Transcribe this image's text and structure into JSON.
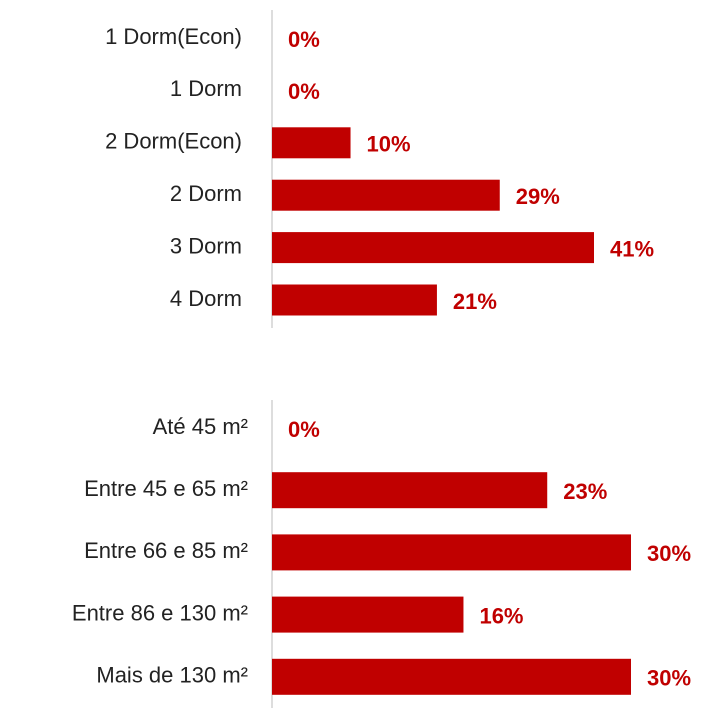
{
  "chart_data": [
    {
      "type": "hbar",
      "categories": [
        "1 Dorm(Econ)",
        "1 Dorm",
        "2 Dorm(Econ)",
        "2 Dorm",
        "3 Dorm",
        "4 Dorm"
      ],
      "values": [
        0,
        0,
        10,
        29,
        41,
        21
      ],
      "value_labels": [
        "0%",
        "0%",
        "10%",
        "29%",
        "41%",
        "21%"
      ],
      "color": "#c00000",
      "xlim": [
        0,
        41
      ]
    },
    {
      "type": "hbar",
      "categories": [
        "Até 45 m²",
        "Entre 45 e 65 m²",
        "Entre 66 e 85 m²",
        "Entre 86 e 130 m²",
        "Mais de 130 m²"
      ],
      "values": [
        0,
        23,
        30,
        16,
        30
      ],
      "value_labels": [
        "0%",
        "23%",
        "30%",
        "16%",
        "30%"
      ],
      "color": "#c00000",
      "xlim": [
        0,
        30
      ]
    }
  ]
}
